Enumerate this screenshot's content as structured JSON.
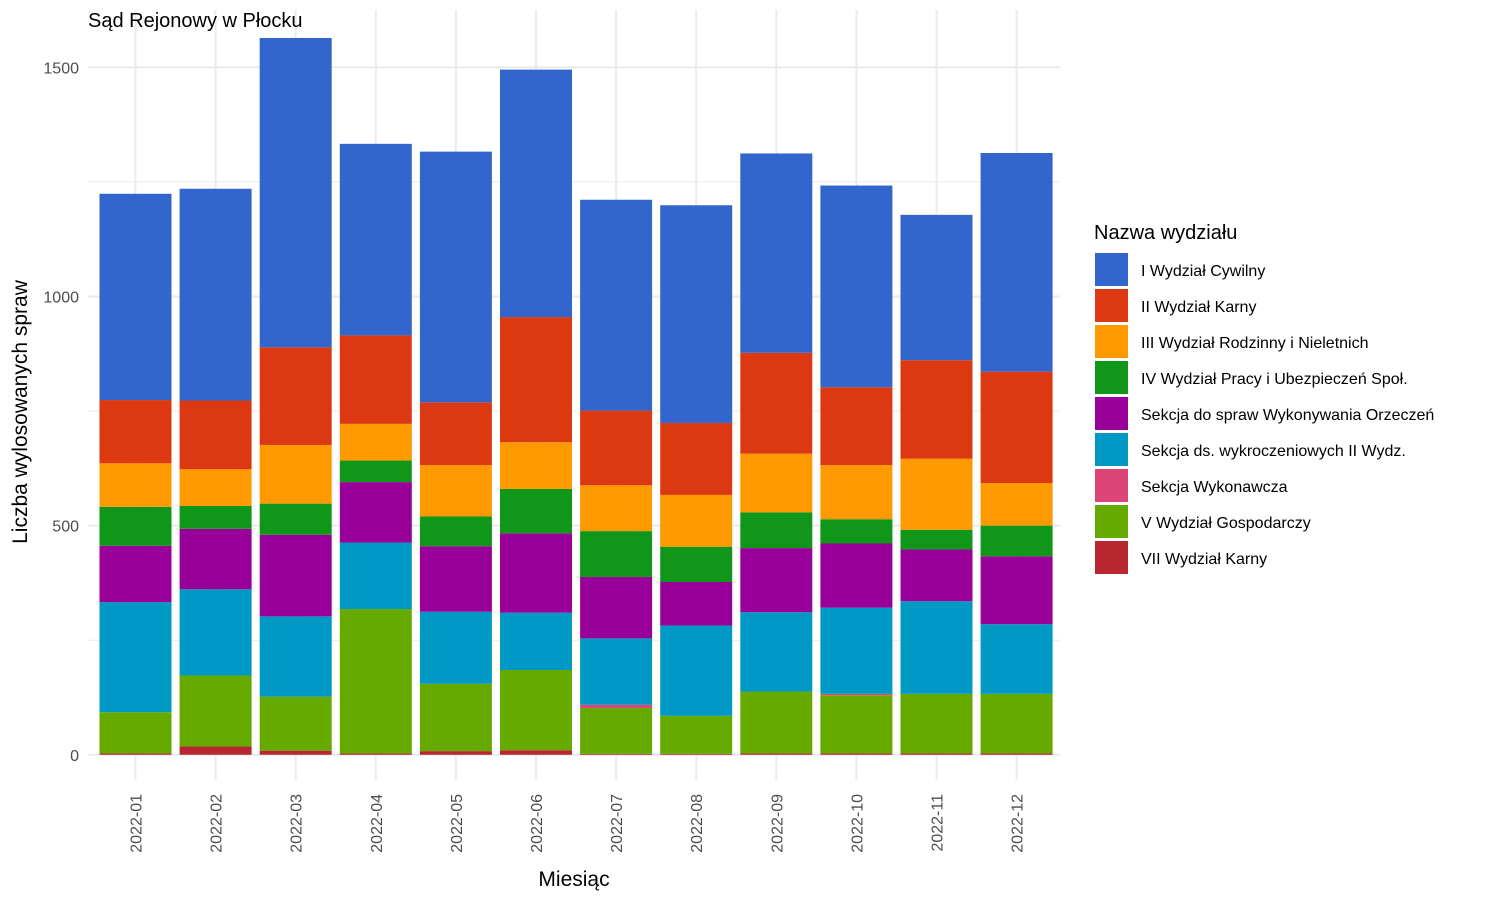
{
  "chart_data": {
    "type": "bar",
    "stacked": true,
    "title": "Sąd Rejonowy w Płocku",
    "xlabel": "Miesiąc",
    "ylabel": "Liczba wylosowanych spraw",
    "ylim": [
      -55,
      1625
    ],
    "yticks": [
      0,
      500,
      1000,
      1500
    ],
    "grid": true,
    "legend_title": "Nazwa wydziału",
    "legend_position": "right",
    "categories": [
      "2022-01",
      "2022-02",
      "2022-03",
      "2022-04",
      "2022-05",
      "2022-06",
      "2022-07",
      "2022-08",
      "2022-09",
      "2022-10",
      "2022-11",
      "2022-12"
    ],
    "series": [
      {
        "name": "VII Wydział Karny",
        "color": "#b8272f",
        "values": [
          3,
          18,
          9,
          3,
          8,
          10,
          2,
          2,
          3,
          3,
          3,
          3
        ]
      },
      {
        "name": "V Wydział Gospodarczy",
        "color": "#66aa00",
        "values": [
          90,
          155,
          118,
          315,
          147,
          175,
          100,
          83,
          135,
          127,
          130,
          130
        ]
      },
      {
        "name": "Sekcja Wykonawcza",
        "color": "#dd4477",
        "values": [
          0,
          0,
          0,
          0,
          0,
          0,
          7,
          0,
          0,
          3,
          0,
          0
        ]
      },
      {
        "name": "Sekcja ds. wykroczeniowych II Wydz.",
        "color": "#0099c6",
        "values": [
          240,
          188,
          175,
          145,
          157,
          125,
          145,
          197,
          173,
          188,
          202,
          152
        ]
      },
      {
        "name": "Sekcja do spraw Wykonywania Orzeczeń",
        "color": "#990099",
        "values": [
          123,
          132,
          178,
          132,
          143,
          173,
          134,
          95,
          140,
          140,
          113,
          148
        ]
      },
      {
        "name": "IV Wydział Pracy i Ubezpieczeń Społ.",
        "color": "#109618",
        "values": [
          85,
          50,
          68,
          47,
          65,
          97,
          100,
          77,
          78,
          53,
          43,
          67
        ]
      },
      {
        "name": "III Wydział Rodzinny i Nieletnich",
        "color": "#ff9900",
        "values": [
          95,
          80,
          128,
          80,
          112,
          102,
          100,
          113,
          128,
          118,
          155,
          93
        ]
      },
      {
        "name": "II Wydział Karny",
        "color": "#dc3912",
        "values": [
          138,
          150,
          213,
          193,
          137,
          273,
          163,
          157,
          220,
          170,
          215,
          243
        ]
      },
      {
        "name": "I Wydział Cywilny",
        "color": "#3366cc",
        "values": [
          450,
          462,
          675,
          418,
          547,
          540,
          460,
          475,
          435,
          440,
          317,
          477
        ]
      }
    ],
    "legend_order": [
      "I Wydział Cywilny",
      "II Wydział Karny",
      "III Wydział Rodzinny i Nieletnich",
      "IV Wydział Pracy i Ubezpieczeń Społ.",
      "Sekcja do spraw Wykonywania Orzeczeń",
      "Sekcja ds. wykroczeniowych II Wydz.",
      "Sekcja Wykonawcza",
      "V Wydział Gospodarczy",
      "VII Wydział Karny"
    ]
  }
}
